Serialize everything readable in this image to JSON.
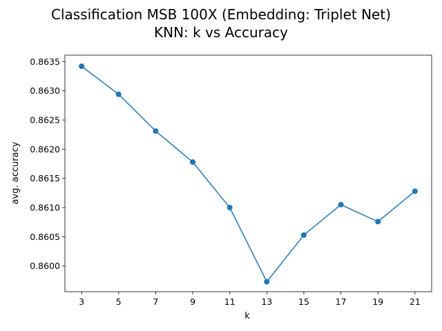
{
  "chart_data": {
    "type": "line",
    "title_line1": "Classification MSB 100X (Embedding: Triplet Net)",
    "title_line2": "KNN: k vs  Accuracy",
    "xlabel": "k",
    "ylabel": "avg. accuracy",
    "x": [
      3,
      5,
      7,
      9,
      11,
      13,
      15,
      17,
      19,
      21
    ],
    "x_tick_labels": [
      "3",
      "5",
      "7",
      "9",
      "11",
      "13",
      "15",
      "17",
      "19",
      "21"
    ],
    "series": [
      {
        "values": [
          0.86342,
          0.86294,
          0.86231,
          0.86178,
          0.861,
          0.85973,
          0.86053,
          0.86105,
          0.86076,
          0.86128
        ]
      }
    ],
    "y_ticks": [
      0.86,
      0.8605,
      0.861,
      0.8615,
      0.862,
      0.8625,
      0.863,
      0.8635
    ],
    "y_tick_labels": [
      "0.8600",
      "0.8605",
      "0.8610",
      "0.8615",
      "0.8620",
      "0.8625",
      "0.8630",
      "0.8635"
    ],
    "xlim": [
      2.1,
      21.9
    ],
    "ylim": [
      0.85956,
      0.86361
    ],
    "grid": false,
    "line_color": "#1f77b4"
  }
}
